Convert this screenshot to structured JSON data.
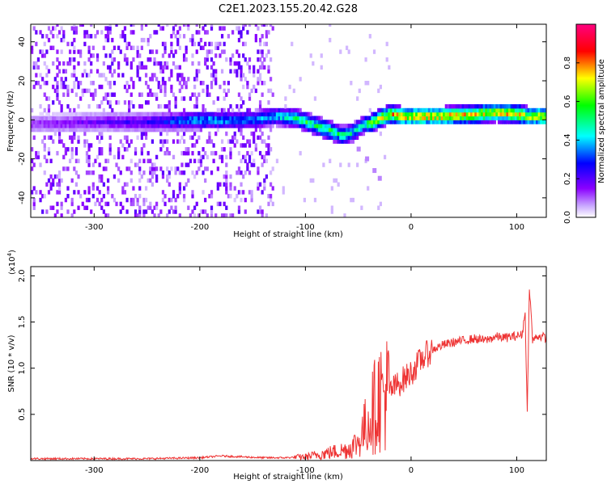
{
  "figure": {
    "title": "C2E1.2023.155.20.42.G28"
  },
  "chart_data": [
    {
      "type": "heatmap",
      "xlabel": "Height of straight line (km)",
      "ylabel": "Frequency (Hz)",
      "xlim": [
        -360,
        128
      ],
      "ylim": [
        -50,
        49
      ],
      "xticks": [
        -300,
        -200,
        -100,
        0,
        100
      ],
      "yticks": [
        -40,
        -20,
        0,
        20,
        40
      ],
      "colorbar": {
        "label": "Normalized spectral amplitude",
        "range": [
          0.0,
          1.0
        ],
        "ticks": [
          0.0,
          0.2,
          0.4,
          0.6,
          0.8
        ],
        "colors": [
          "#ffffff",
          "#8a00ff",
          "#0000ff",
          "#00ffff",
          "#00ff00",
          "#ffff00",
          "#ff0000",
          "#ff0080"
        ]
      },
      "ridge": {
        "x": [
          -360,
          -300,
          -250,
          -200,
          -150,
          -130,
          -110,
          -90,
          -75,
          -65,
          -55,
          -45,
          -40,
          -30,
          -20,
          -10,
          0,
          30,
          60,
          80,
          100,
          110,
          128
        ],
        "y": [
          -3,
          -2,
          -2,
          -1,
          -1,
          1,
          0,
          -4,
          -7,
          -9,
          -7,
          -3,
          -3,
          0,
          2,
          1,
          1,
          1,
          2,
          3,
          2,
          1,
          1
        ],
        "amplitude": [
          0.15,
          0.2,
          0.25,
          0.45,
          0.4,
          0.45,
          0.55,
          0.6,
          0.6,
          0.55,
          0.5,
          0.5,
          0.7,
          0.75,
          0.8,
          0.85,
          0.85,
          0.85,
          0.8,
          0.85,
          0.85,
          0.8,
          0.85
        ]
      },
      "branch": {
        "x": [
          -50,
          -42,
          -35,
          -30
        ],
        "y": [
          -15,
          -20,
          -26,
          -30
        ]
      },
      "noise_region_x": [
        -360,
        -130
      ]
    },
    {
      "type": "line",
      "xlabel": "Height of straight line (km)",
      "ylabel": "SNR (10 * v/v)",
      "y_multiplier": "(x10",
      "y_multiplier_exp": "4",
      "y_multiplier_close": ")",
      "xlim": [
        -360,
        128
      ],
      "ylim": [
        0,
        2.1
      ],
      "xticks": [
        -300,
        -200,
        -100,
        0,
        100
      ],
      "yticks": [
        0.5,
        1.0,
        1.5,
        2.0
      ],
      "color": "#ee3333",
      "x": [
        -360,
        -300,
        -250,
        -200,
        -180,
        -160,
        -140,
        -120,
        -100,
        -80,
        -60,
        -50,
        -40,
        -30,
        -20,
        -10,
        0,
        10,
        20,
        30,
        40,
        50,
        60,
        70,
        80,
        90,
        100,
        105,
        108,
        110,
        112,
        115,
        120,
        128
      ],
      "y": [
        0.02,
        0.02,
        0.02,
        0.03,
        0.05,
        0.04,
        0.03,
        0.03,
        0.04,
        0.08,
        0.12,
        0.2,
        0.45,
        0.7,
        0.75,
        0.85,
        0.95,
        1.1,
        1.2,
        1.25,
        1.28,
        1.3,
        1.32,
        1.3,
        1.34,
        1.33,
        1.35,
        1.36,
        1.6,
        0.5,
        1.9,
        1.3,
        1.35,
        1.33
      ]
    }
  ]
}
